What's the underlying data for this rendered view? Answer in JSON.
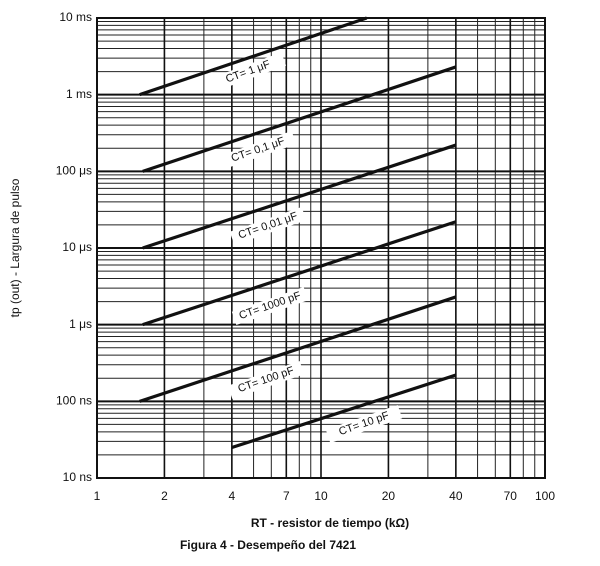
{
  "chart_data": {
    "type": "line",
    "x_label": "RT - resistor de tiempo (kΩ)",
    "y_label": "tp (out) - Largura de pulso",
    "caption": "Figura 4 - Desempeño del 7421",
    "xscale": "log",
    "yscale": "log",
    "grid": true,
    "color": "#111111",
    "xlim": [
      1,
      100
    ],
    "ylim": [
      10,
      10000000
    ],
    "xticks": [
      1,
      2,
      4,
      7,
      10,
      20,
      40,
      70,
      100
    ],
    "yticks": [
      {
        "value": 10,
        "label": "10 ns"
      },
      {
        "value": 100,
        "label": "100 ns"
      },
      {
        "value": 1000,
        "label": "1 μs"
      },
      {
        "value": 10000,
        "label": "10 μs"
      },
      {
        "value": 100000,
        "label": "100 μs"
      },
      {
        "value": 1000000,
        "label": "1 ms"
      },
      {
        "value": 10000000,
        "label": "10 ms"
      }
    ],
    "series": [
      {
        "name": "CT= 1 μF",
        "x": [
          1.55,
          16
        ],
        "values": [
          1000000,
          10000000
        ]
      },
      {
        "name": "CT= 0,1 μF",
        "x": [
          1.6,
          40
        ],
        "values": [
          100000,
          2300000
        ]
      },
      {
        "name": "CT= 0,01 μF",
        "x": [
          1.6,
          40
        ],
        "values": [
          10000,
          220000
        ]
      },
      {
        "name": "CT= 1000 pF",
        "x": [
          1.6,
          40
        ],
        "values": [
          1000,
          22000
        ]
      },
      {
        "name": "CT= 100 pF",
        "x": [
          1.55,
          40
        ],
        "values": [
          100,
          2300
        ]
      },
      {
        "name": "CT= 10 pF",
        "x": [
          4,
          40
        ],
        "values": [
          25,
          220
        ]
      }
    ]
  }
}
